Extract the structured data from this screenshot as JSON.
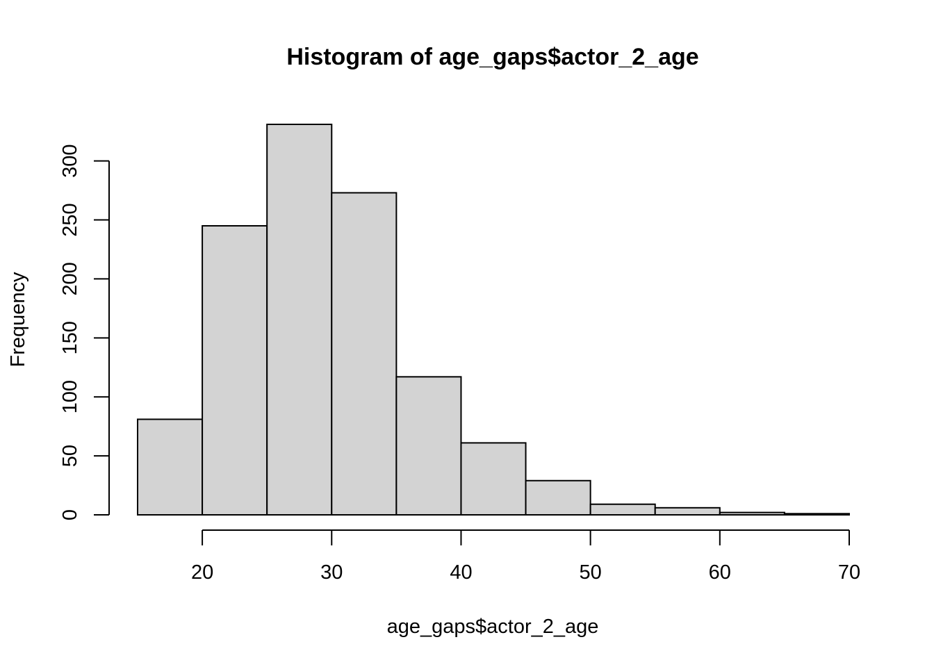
{
  "chart_data": {
    "type": "bar",
    "title": "Histogram of age_gaps$actor_2_age",
    "xlabel": "age_gaps$actor_2_age",
    "ylabel": "Frequency",
    "bins": [
      {
        "start": 15,
        "end": 20,
        "count": 81
      },
      {
        "start": 20,
        "end": 25,
        "count": 245
      },
      {
        "start": 25,
        "end": 30,
        "count": 331
      },
      {
        "start": 30,
        "end": 35,
        "count": 273
      },
      {
        "start": 35,
        "end": 40,
        "count": 117
      },
      {
        "start": 40,
        "end": 45,
        "count": 61
      },
      {
        "start": 45,
        "end": 50,
        "count": 29
      },
      {
        "start": 50,
        "end": 55,
        "count": 9
      },
      {
        "start": 55,
        "end": 60,
        "count": 6
      },
      {
        "start": 60,
        "end": 65,
        "count": 2
      },
      {
        "start": 65,
        "end": 70,
        "count": 1
      }
    ],
    "xlim": [
      15,
      70
    ],
    "ylim": [
      0,
      331
    ],
    "x_ticks": [
      20,
      30,
      40,
      50,
      60,
      70
    ],
    "x_tick_labels": [
      "20",
      "30",
      "40",
      "50",
      "60",
      "70"
    ],
    "y_ticks": [
      0,
      50,
      100,
      150,
      200,
      250,
      300
    ],
    "y_tick_labels": [
      "0",
      "50",
      "100",
      "150",
      "200",
      "250",
      "300"
    ],
    "grid": false,
    "bar_fill": "#d3d3d3",
    "bar_stroke": "#000000"
  }
}
